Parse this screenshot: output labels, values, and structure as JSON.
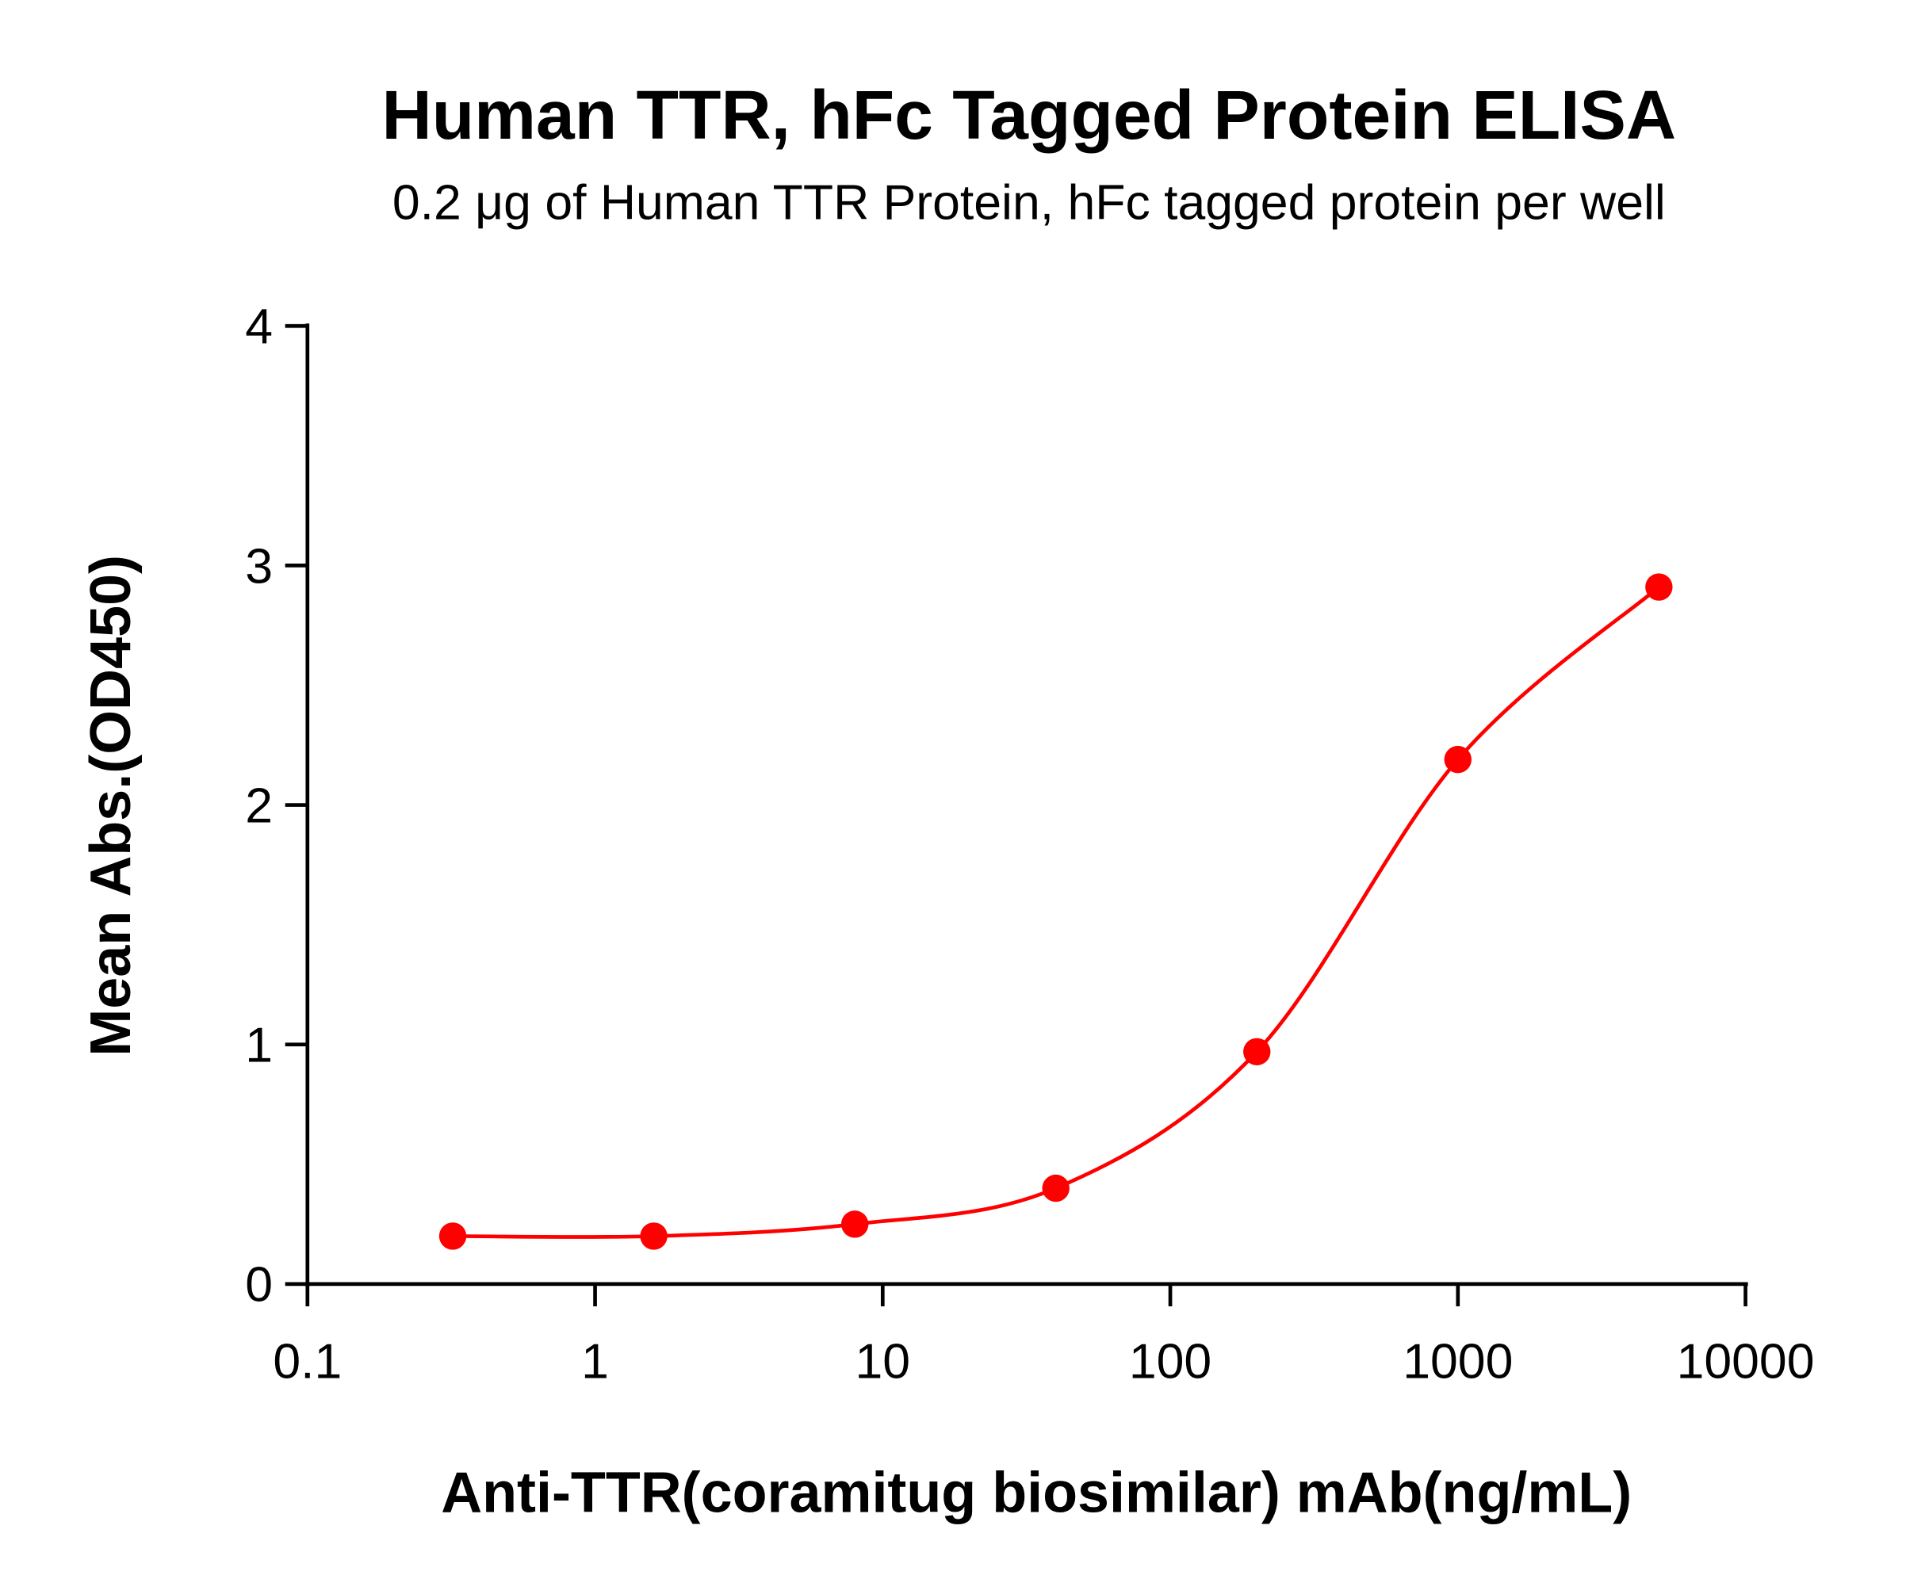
{
  "chart_data": {
    "type": "scatter",
    "title": "Human TTR, hFc Tagged Protein ELISA",
    "subtitle": "0.2 μg of Human TTR Protein, hFc tagged protein per well",
    "xlabel": "Anti-TTR(coramitug biosimilar) mAb(ng/mL)",
    "ylabel": "Mean Abs.(OD450)",
    "xscale": "log",
    "xlim": [
      0.1,
      10000
    ],
    "ylim": [
      0,
      4
    ],
    "xticks": [
      "0.1",
      "1",
      "10",
      "100",
      "1000",
      "10000"
    ],
    "yticks": [
      "0",
      "1",
      "2",
      "3",
      "4"
    ],
    "grid": false,
    "fit_curve": "sigmoidal",
    "color": "#ff0000",
    "series": [
      {
        "x": [
          0.32,
          1.6,
          8,
          40,
          200,
          1000,
          5000
        ],
        "y": [
          0.2,
          0.2,
          0.25,
          0.4,
          0.97,
          2.19,
          2.91
        ]
      }
    ]
  }
}
